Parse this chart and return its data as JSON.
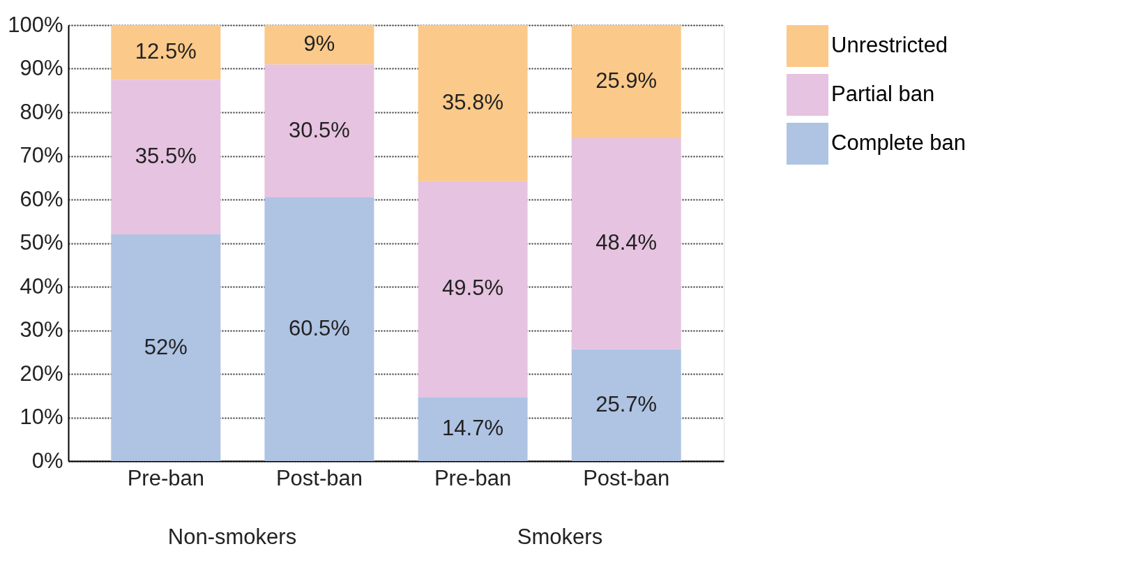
{
  "chart_data": {
    "type": "bar",
    "stacked": true,
    "categories": [
      "Pre-ban",
      "Post-ban",
      "Pre-ban",
      "Post-ban"
    ],
    "series": [
      {
        "name": "Complete ban",
        "color": "#afc3e3",
        "values": [
          52,
          60.5,
          14.7,
          25.7
        ],
        "value_labels": [
          "52%",
          "60.5%",
          "14.7%",
          "25.7%"
        ]
      },
      {
        "name": "Partial ban",
        "color": "#e6c3e0",
        "values": [
          35.5,
          30.5,
          49.5,
          48.4
        ],
        "value_labels": [
          "35.5%",
          "30.5%",
          "49.5%",
          "48.4%"
        ]
      },
      {
        "name": "Unrestricted",
        "color": "#fbc98a",
        "values": [
          12.5,
          9,
          35.8,
          25.9
        ],
        "value_labels": [
          "12.5%",
          "9%",
          "35.8%",
          "25.9%"
        ]
      }
    ],
    "ylim": [
      0,
      100
    ],
    "yticks": [
      {
        "value": 0,
        "label": "0%"
      },
      {
        "value": 10,
        "label": "10%"
      },
      {
        "value": 20,
        "label": "20%"
      },
      {
        "value": 30,
        "label": "30%"
      },
      {
        "value": 40,
        "label": "40%"
      },
      {
        "value": 50,
        "label": "50%"
      },
      {
        "value": 60,
        "label": "60%"
      },
      {
        "value": 70,
        "label": "70%"
      },
      {
        "value": 80,
        "label": "80%"
      },
      {
        "value": 90,
        "label": "90%"
      },
      {
        "value": 100,
        "label": "100%"
      }
    ],
    "grid": "y",
    "legend": "right",
    "annotations": [
      "Non-smokers",
      "Smokers"
    ]
  }
}
